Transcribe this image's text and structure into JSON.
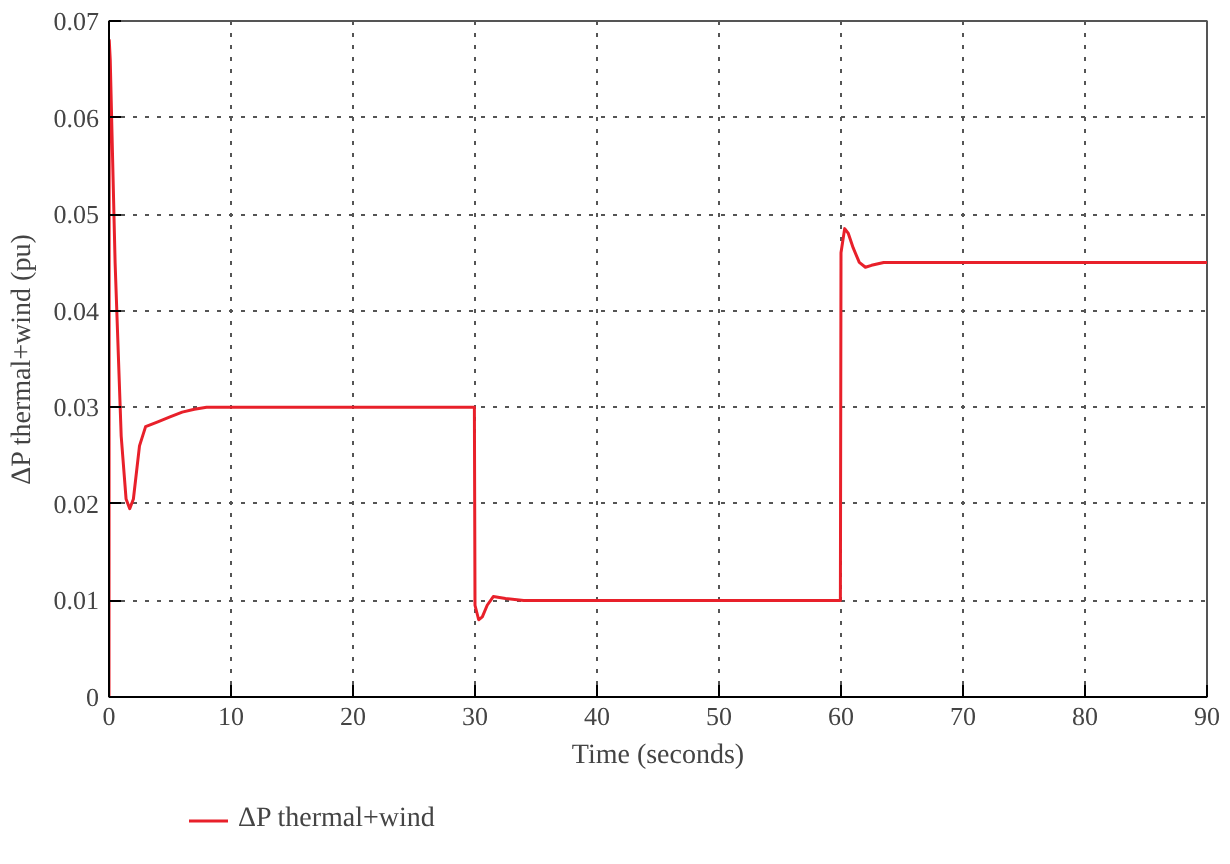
{
  "chart_data": {
    "type": "line",
    "xlabel": "Time (seconds)",
    "ylabel": "ΔP thermal+wind (pu)",
    "xlim": [
      0,
      90
    ],
    "ylim": [
      0,
      0.07
    ],
    "xticks": [
      0,
      10,
      20,
      30,
      40,
      50,
      60,
      70,
      80,
      90
    ],
    "yticks": [
      0,
      0.01,
      0.02,
      0.03,
      0.04,
      0.05,
      0.06,
      0.07
    ],
    "grid": true,
    "legend": "bottom left",
    "line_style": "solid",
    "series": [
      {
        "name": "ΔP thermal+wind",
        "color": "#e8202a",
        "x": [
          0,
          0.02,
          0.1,
          0.5,
          1.0,
          1.4,
          1.7,
          2.0,
          2.5,
          3.0,
          4.0,
          5.0,
          6.0,
          7.0,
          8.0,
          10,
          20,
          29.95,
          30.0,
          30.3,
          30.6,
          31.0,
          31.5,
          32.5,
          34,
          40,
          50,
          59.95,
          60.0,
          60.3,
          60.6,
          61.0,
          61.5,
          62.0,
          62.5,
          63.5,
          70,
          80,
          90
        ],
        "values": [
          0,
          0.068,
          0.066,
          0.045,
          0.027,
          0.0205,
          0.0195,
          0.0205,
          0.026,
          0.028,
          0.0285,
          0.029,
          0.0295,
          0.0298,
          0.03,
          0.03,
          0.03,
          0.03,
          0.0095,
          0.008,
          0.0083,
          0.0095,
          0.0104,
          0.0102,
          0.01,
          0.01,
          0.01,
          0.01,
          0.046,
          0.0485,
          0.048,
          0.0465,
          0.045,
          0.0445,
          0.0447,
          0.045,
          0.045,
          0.045,
          0.045
        ]
      }
    ]
  }
}
